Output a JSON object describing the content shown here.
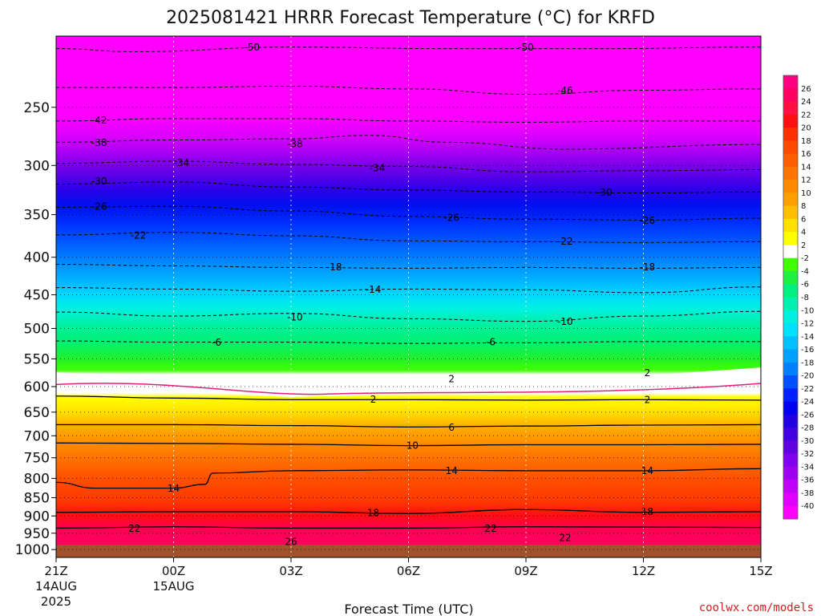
{
  "chart_data": {
    "type": "heatmap",
    "title": "2025081421 HRRR Forecast Temperature (°C) for KRFD",
    "xlabel": "Forecast Time (UTC)",
    "ylabel": "",
    "credit": "coolwx.com/models",
    "x_ticks": [
      {
        "label": "21Z",
        "sub1": "14AUG",
        "sub2": "2025",
        "hour": 0
      },
      {
        "label": "00Z",
        "sub1": "15AUG",
        "sub2": "",
        "hour": 3
      },
      {
        "label": "03Z",
        "sub1": "",
        "sub2": "",
        "hour": 6
      },
      {
        "label": "06Z",
        "sub1": "",
        "sub2": "",
        "hour": 9
      },
      {
        "label": "09Z",
        "sub1": "",
        "sub2": "",
        "hour": 12
      },
      {
        "label": "12Z",
        "sub1": "",
        "sub2": "",
        "hour": 15
      },
      {
        "label": "15Z",
        "sub1": "",
        "sub2": "",
        "hour": 18
      }
    ],
    "xlim": [
      0,
      18
    ],
    "y_ticks": [
      250,
      300,
      350,
      400,
      450,
      500,
      550,
      600,
      650,
      700,
      750,
      800,
      850,
      900,
      950,
      1000
    ],
    "y_axis": "pressure (hPa), log scale, decreasing upward",
    "ylim": [
      1025,
      200
    ],
    "colorbar_labels": [
      "26",
      "24",
      "22",
      "20",
      "18",
      "16",
      "14",
      "12",
      "10",
      "8",
      "6",
      "4",
      "2",
      "-2",
      "-4",
      "-6",
      "-8",
      "-10",
      "-12",
      "-14",
      "-16",
      "-18",
      "-20",
      "-22",
      "-24",
      "-26",
      "-28",
      "-30",
      "-32",
      "-34",
      "-36",
      "-38",
      "-40"
    ],
    "colorbar_colors": [
      "#ff0080",
      "#ff0060",
      "#ff1040",
      "#ff1010",
      "#ff3000",
      "#ff4800",
      "#ff5e00",
      "#ff7400",
      "#ff8a00",
      "#ffa000",
      "#ffbe00",
      "#ffe000",
      "#ffff00",
      "#ffffff",
      "#40ff00",
      "#20f040",
      "#00f080",
      "#00f0b0",
      "#00f0e0",
      "#00e0ff",
      "#00c0ff",
      "#00a0ff",
      "#0080ff",
      "#0050ff",
      "#0020ff",
      "#0000f0",
      "#2000e0",
      "#4000e0",
      "#6000e0",
      "#8000f0",
      "#a000f0",
      "#c000f8",
      "#e000ff",
      "#ff00ff"
    ],
    "ground_color": "#a0522d",
    "contours": [
      {
        "value": -50,
        "label": "-50",
        "dash": true,
        "points": [
          [
            0,
            208
          ],
          [
            2,
            210
          ],
          [
            6,
            207
          ],
          [
            10,
            208
          ],
          [
            14,
            208
          ],
          [
            18,
            207
          ]
        ]
      },
      {
        "value": -46,
        "label": "-46",
        "dash": true,
        "points": [
          [
            0,
            235
          ],
          [
            3,
            235
          ],
          [
            6,
            234
          ],
          [
            9,
            236
          ],
          [
            12,
            240
          ],
          [
            15,
            237
          ],
          [
            18,
            236
          ]
        ]
      },
      {
        "value": -42,
        "label": "-42",
        "dash": true,
        "points": [
          [
            0,
            261
          ],
          [
            3,
            259
          ],
          [
            6,
            259
          ],
          [
            9,
            261
          ],
          [
            12,
            262
          ],
          [
            15,
            261
          ],
          [
            18,
            261
          ]
        ]
      },
      {
        "value": -38,
        "label": "-38",
        "dash": true,
        "points": [
          [
            0,
            279
          ],
          [
            3,
            277
          ],
          [
            6,
            276
          ],
          [
            8,
            273
          ],
          [
            10,
            279
          ],
          [
            13,
            285
          ],
          [
            18,
            281
          ]
        ]
      },
      {
        "value": -34,
        "label": "-34",
        "dash": true,
        "points": [
          [
            0,
            298
          ],
          [
            3,
            296
          ],
          [
            6,
            299
          ],
          [
            9,
            301
          ],
          [
            12,
            306
          ],
          [
            15,
            305
          ],
          [
            18,
            304
          ]
        ]
      },
      {
        "value": -30,
        "label": "-30",
        "dash": true,
        "points": [
          [
            0,
            318
          ],
          [
            3,
            316
          ],
          [
            6,
            321
          ],
          [
            9,
            324
          ],
          [
            12,
            326
          ],
          [
            15,
            327
          ],
          [
            18,
            326
          ]
        ]
      },
      {
        "value": -26,
        "label": "-26",
        "dash": true,
        "points": [
          [
            0,
            342
          ],
          [
            3,
            341
          ],
          [
            6,
            346
          ],
          [
            9,
            352
          ],
          [
            12,
            355
          ],
          [
            15,
            356
          ],
          [
            18,
            354
          ]
        ]
      },
      {
        "value": -22,
        "label": "-22",
        "dash": true,
        "points": [
          [
            0,
            373
          ],
          [
            3,
            370
          ],
          [
            6,
            374
          ],
          [
            9,
            380
          ],
          [
            12,
            381
          ],
          [
            15,
            382
          ],
          [
            18,
            381
          ]
        ]
      },
      {
        "value": -18,
        "label": "-18",
        "dash": true,
        "points": [
          [
            0,
            409
          ],
          [
            3,
            411
          ],
          [
            6,
            413
          ],
          [
            9,
            414
          ],
          [
            12,
            413
          ],
          [
            15,
            414
          ],
          [
            18,
            413
          ]
        ]
      },
      {
        "value": -14,
        "label": "-14",
        "dash": true,
        "points": [
          [
            0,
            440
          ],
          [
            3,
            442
          ],
          [
            6,
            445
          ],
          [
            9,
            442
          ],
          [
            12,
            443
          ],
          [
            15,
            447
          ],
          [
            18,
            439
          ]
        ]
      },
      {
        "value": -10,
        "label": "-10",
        "dash": true,
        "points": [
          [
            0,
            475
          ],
          [
            3,
            481
          ],
          [
            6,
            477
          ],
          [
            9,
            485
          ],
          [
            12,
            489
          ],
          [
            15,
            481
          ],
          [
            18,
            474
          ]
        ]
      },
      {
        "value": -6,
        "label": "-6",
        "dash": true,
        "points": [
          [
            0,
            520
          ],
          [
            3,
            522
          ],
          [
            6,
            522
          ],
          [
            9,
            524
          ],
          [
            12,
            523
          ],
          [
            15,
            521
          ],
          [
            18,
            521
          ]
        ]
      },
      {
        "value": 2,
        "label": "2",
        "dash": false,
        "points": [
          [
            0,
            618
          ],
          [
            3,
            622
          ],
          [
            6,
            625
          ],
          [
            9,
            625
          ],
          [
            12,
            626
          ],
          [
            15,
            625
          ],
          [
            18,
            626
          ]
        ]
      },
      {
        "value": 6,
        "label": "6",
        "dash": false,
        "points": [
          [
            0,
            676
          ],
          [
            3,
            676
          ],
          [
            6,
            678
          ],
          [
            9,
            681
          ],
          [
            12,
            679
          ],
          [
            15,
            677
          ],
          [
            18,
            676
          ]
        ]
      },
      {
        "value": 10,
        "label": "10",
        "dash": false,
        "points": [
          [
            0,
            716
          ],
          [
            3,
            717
          ],
          [
            6,
            719
          ],
          [
            9,
            722
          ],
          [
            12,
            720
          ],
          [
            15,
            720
          ],
          [
            18,
            719
          ]
        ]
      },
      {
        "value": 14,
        "label": "14",
        "dash": false,
        "points": [
          [
            0,
            810
          ],
          [
            1,
            825
          ],
          [
            3,
            825
          ],
          [
            3.8,
            815
          ],
          [
            4,
            787
          ],
          [
            6,
            781
          ],
          [
            9,
            779
          ],
          [
            12,
            781
          ],
          [
            15,
            781
          ],
          [
            18,
            776
          ]
        ]
      },
      {
        "value": 18,
        "label": "18",
        "dash": false,
        "points": [
          [
            0,
            890
          ],
          [
            3,
            888
          ],
          [
            6,
            888
          ],
          [
            9,
            893
          ],
          [
            12,
            882
          ],
          [
            15,
            890
          ],
          [
            18,
            888
          ]
        ]
      },
      {
        "value": 22,
        "label": "22",
        "dash": false,
        "points": [
          [
            0,
            935
          ],
          [
            3,
            931
          ],
          [
            6,
            935
          ],
          [
            9,
            935
          ],
          [
            12,
            931
          ],
          [
            15,
            932
          ],
          [
            18,
            933
          ]
        ]
      }
    ],
    "contour_labels": [
      {
        "text": "-50",
        "hour": 5.0,
        "p": 207
      },
      {
        "text": "-50",
        "hour": 12.0,
        "p": 207
      },
      {
        "text": "-46",
        "hour": 13.0,
        "p": 237
      },
      {
        "text": "-42",
        "hour": 1.1,
        "p": 260
      },
      {
        "text": "-38",
        "hour": 1.1,
        "p": 279
      },
      {
        "text": "-38",
        "hour": 6.1,
        "p": 280
      },
      {
        "text": "-34",
        "hour": 3.2,
        "p": 297
      },
      {
        "text": "-34",
        "hour": 8.2,
        "p": 302
      },
      {
        "text": "-30",
        "hour": 1.1,
        "p": 315
      },
      {
        "text": "-30",
        "hour": 14.0,
        "p": 326
      },
      {
        "text": "-26",
        "hour": 1.1,
        "p": 341
      },
      {
        "text": "-26",
        "hour": 10.1,
        "p": 353
      },
      {
        "text": "-26",
        "hour": 15.1,
        "p": 356
      },
      {
        "text": "-22",
        "hour": 2.1,
        "p": 373
      },
      {
        "text": "-22",
        "hour": 13.0,
        "p": 380
      },
      {
        "text": "-18",
        "hour": 7.1,
        "p": 412
      },
      {
        "text": "-18",
        "hour": 15.1,
        "p": 412
      },
      {
        "text": "-14",
        "hour": 8.1,
        "p": 442
      },
      {
        "text": "-10",
        "hour": 6.1,
        "p": 482
      },
      {
        "text": "-10",
        "hour": 13.0,
        "p": 489
      },
      {
        "text": "-6",
        "hour": 4.1,
        "p": 522
      },
      {
        "text": "-6",
        "hour": 11.1,
        "p": 521
      },
      {
        "text": "2",
        "hour": 10.1,
        "p": 585
      },
      {
        "text": "2",
        "hour": 15.1,
        "p": 574
      },
      {
        "text": "2",
        "hour": 8.1,
        "p": 624
      },
      {
        "text": "2",
        "hour": 15.1,
        "p": 625
      },
      {
        "text": "6",
        "hour": 10.1,
        "p": 681
      },
      {
        "text": "10",
        "hour": 9.1,
        "p": 721
      },
      {
        "text": "14",
        "hour": 3.0,
        "p": 825
      },
      {
        "text": "14",
        "hour": 10.1,
        "p": 780
      },
      {
        "text": "14",
        "hour": 15.1,
        "p": 780
      },
      {
        "text": "18",
        "hour": 8.1,
        "p": 890
      },
      {
        "text": "18",
        "hour": 15.1,
        "p": 887
      },
      {
        "text": "22",
        "hour": 2.0,
        "p": 935
      },
      {
        "text": "22",
        "hour": 11.1,
        "p": 935
      },
      {
        "text": "22",
        "hour": 13.0,
        "p": 963
      },
      {
        "text": "26",
        "hour": 6.0,
        "p": 975
      }
    ]
  }
}
